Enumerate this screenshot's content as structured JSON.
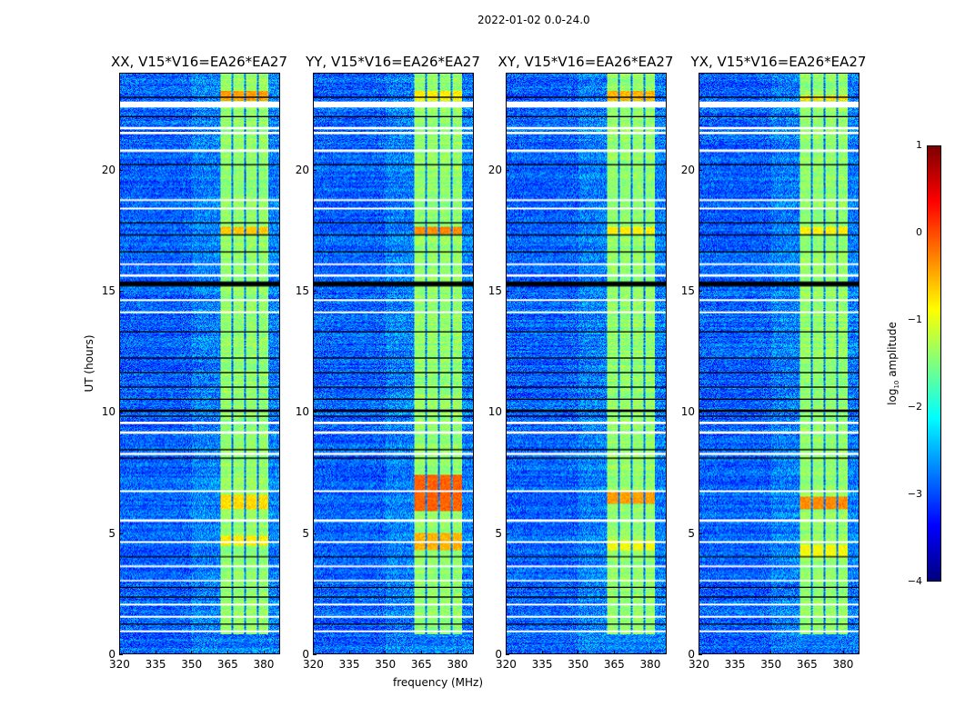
{
  "chart_data": {
    "type": "heatmap",
    "title": "2022-01-02 0.0-24.0",
    "xlabel": "frequency (MHz)",
    "ylabel": "UT (hours)",
    "xlim": [
      320,
      387
    ],
    "ylim": [
      0,
      24
    ],
    "xticks": [
      "320",
      "335",
      "350",
      "365",
      "380"
    ],
    "yticks": [
      "0",
      "5",
      "10",
      "15",
      "20"
    ],
    "colorbar": {
      "label": "log10 amplitude",
      "label_main": "log",
      "label_sub": "10",
      "label_tail": " amplitude",
      "range": [
        -4,
        1
      ],
      "ticks": [
        "−4",
        "−3",
        "−2",
        "−1",
        "0",
        "1"
      ],
      "colormap": "jet"
    },
    "bands_mhz": [
      [
        362.3,
        366.8
      ],
      [
        367.6,
        372.2
      ],
      [
        372.9,
        377.4
      ],
      [
        378.1,
        382.3
      ]
    ],
    "background_level": -2.9,
    "band_level": -1.4,
    "flagged_white_hours": [
      [
        22.6,
        22.85
      ],
      [
        21.7,
        21.8
      ],
      [
        21.5,
        21.6
      ],
      [
        20.75,
        20.85
      ],
      [
        18.75,
        18.8
      ],
      [
        18.4,
        18.45
      ],
      [
        16.1,
        16.15
      ],
      [
        15.6,
        15.7
      ],
      [
        14.6,
        14.65
      ],
      [
        14.1,
        14.15
      ],
      [
        9.5,
        9.6
      ],
      [
        9.1,
        9.2
      ],
      [
        8.2,
        8.3
      ],
      [
        6.7,
        6.75
      ],
      [
        5.45,
        5.55
      ],
      [
        4.6,
        4.65
      ],
      [
        3.6,
        3.65
      ],
      [
        3.0,
        3.05
      ],
      [
        2.0,
        2.05
      ],
      [
        1.5,
        1.55
      ],
      [
        0.9,
        0.95
      ]
    ],
    "flagged_black_hours": [
      [
        23.0,
        23.05
      ],
      [
        22.2,
        22.25
      ],
      [
        20.2,
        20.25
      ],
      [
        17.8,
        17.85
      ],
      [
        17.3,
        17.35
      ],
      [
        16.6,
        16.65
      ],
      [
        15.2,
        15.4
      ],
      [
        13.3,
        13.33
      ],
      [
        12.2,
        12.25
      ],
      [
        11.6,
        11.65
      ],
      [
        11.0,
        11.05
      ],
      [
        10.5,
        10.55
      ],
      [
        10.0,
        10.1
      ],
      [
        9.8,
        9.85
      ],
      [
        8.4,
        8.45
      ],
      [
        8.05,
        8.1
      ],
      [
        4.0,
        4.03
      ],
      [
        2.7,
        2.75
      ],
      [
        2.3,
        2.35
      ],
      [
        1.2,
        1.23
      ]
    ],
    "panels": [
      {
        "title": "XX, V15*V16=EA26*EA27",
        "hot_spots": [
          [
            22.9,
            23.3,
            -0.4
          ],
          [
            17.4,
            17.7,
            -0.6
          ],
          [
            6.0,
            6.6,
            -0.7
          ],
          [
            4.5,
            4.9,
            -0.8
          ]
        ]
      },
      {
        "title": "YY, V15*V16=EA26*EA27",
        "hot_spots": [
          [
            22.9,
            23.3,
            -0.8
          ],
          [
            17.4,
            17.7,
            -0.3
          ],
          [
            5.9,
            7.4,
            -0.1
          ],
          [
            4.3,
            5.0,
            -0.5
          ]
        ]
      },
      {
        "title": "XY, V15*V16=EA26*EA27",
        "hot_spots": [
          [
            22.9,
            23.3,
            -0.5
          ],
          [
            17.4,
            17.7,
            -0.8
          ],
          [
            6.2,
            6.7,
            -0.4
          ],
          [
            4.3,
            4.7,
            -0.9
          ]
        ]
      },
      {
        "title": "YX, V15*V16=EA26*EA27",
        "hot_spots": [
          [
            22.9,
            23.1,
            -0.7
          ],
          [
            17.4,
            17.7,
            -0.8
          ],
          [
            6.0,
            6.5,
            -0.3
          ],
          [
            4.0,
            4.5,
            -0.9
          ]
        ]
      }
    ]
  }
}
